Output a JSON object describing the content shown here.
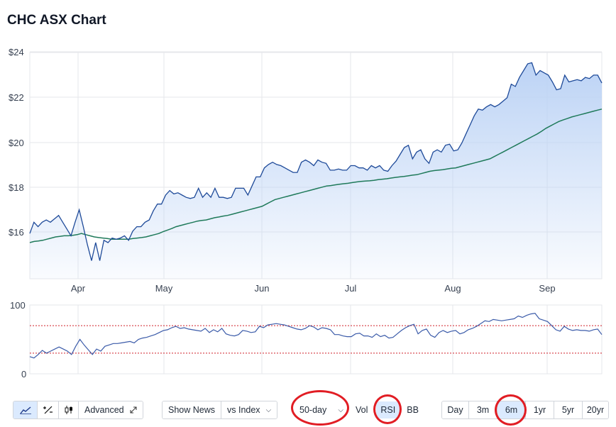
{
  "title": "CHC ASX Chart",
  "colors": {
    "price_line": "#1e4a99",
    "ma_line": "#1f7a5a",
    "area_top": "#bcd3f5",
    "rsi_line": "#3b5ba9",
    "rsi_bands": "#d0202a",
    "grid": "#e5e7eb",
    "annotation": "#e11d24",
    "active_button": "#dbeafe"
  },
  "chart_data": [
    {
      "type": "area",
      "title": "",
      "x_ticks": [
        "Apr",
        "May",
        "Jun",
        "Jul",
        "Aug",
        "Sep"
      ],
      "y_ticks": [
        "$16",
        "$18",
        "$20",
        "$22",
        "$24"
      ],
      "ylim": [
        14.3,
        24.3
      ],
      "grid": true,
      "series": [
        {
          "values": [
            16.3,
            16.8,
            16.6,
            16.8,
            16.9,
            16.8,
            16.95,
            17.1,
            16.8,
            16.5,
            16.2,
            16.8,
            17.35,
            16.6,
            15.8,
            15.1,
            15.9,
            15.1,
            16.0,
            15.9,
            16.1,
            16.05,
            16.1,
            16.2,
            16.0,
            16.4,
            16.6,
            16.6,
            16.8,
            16.9,
            17.3,
            17.6,
            17.6,
            18.0,
            18.2,
            18.05,
            18.1,
            18.0,
            17.9,
            17.85,
            17.9,
            18.3,
            17.9,
            18.1,
            17.9,
            18.3,
            17.9,
            17.9,
            17.85,
            17.9,
            18.3,
            18.3,
            18.3,
            18.0,
            18.4,
            18.8,
            18.8,
            19.2,
            19.35,
            19.45,
            19.35,
            19.3,
            19.2,
            19.1,
            19.0,
            19.0,
            19.45,
            19.55,
            19.45,
            19.3,
            19.55,
            19.45,
            19.4,
            19.1,
            19.1,
            19.15,
            19.1,
            19.1,
            19.3,
            19.3,
            19.2,
            19.2,
            19.1,
            19.3,
            19.2,
            19.3,
            19.1,
            19.05,
            19.3,
            19.5,
            19.8,
            20.1,
            20.2,
            19.6,
            19.9,
            20.0,
            19.6,
            19.4,
            19.9,
            20.0,
            19.9,
            20.2,
            20.25,
            19.95,
            20.0,
            20.3,
            20.7,
            21.1,
            21.5,
            21.8,
            21.75,
            21.9,
            22.0,
            21.9,
            22.0,
            22.15,
            22.3,
            22.9,
            22.8,
            23.2,
            23.5,
            23.8,
            23.85,
            23.3,
            23.5,
            23.4,
            23.3,
            23.0,
            22.65,
            22.7,
            23.3,
            23.0,
            23.05,
            23.1,
            23.05,
            23.2,
            23.15,
            23.3,
            23.3,
            22.95
          ]
        },
        {
          "values": [
            15.9,
            15.95,
            15.97,
            16.0,
            16.05,
            16.1,
            16.15,
            16.17,
            16.2,
            16.2,
            16.22,
            16.25,
            16.3,
            16.25,
            16.2,
            16.15,
            16.12,
            16.1,
            16.08,
            16.05,
            16.05,
            16.05,
            16.05,
            16.05,
            16.08,
            16.1,
            16.12,
            16.15,
            16.2,
            16.25,
            16.3,
            16.38,
            16.45,
            16.52,
            16.6,
            16.65,
            16.7,
            16.75,
            16.8,
            16.85,
            16.88,
            16.9,
            16.95,
            17.0,
            17.03,
            17.07,
            17.1,
            17.15,
            17.2,
            17.25,
            17.3,
            17.35,
            17.4,
            17.45,
            17.5,
            17.6,
            17.7,
            17.8,
            17.85,
            17.9,
            17.95,
            18.0,
            18.05,
            18.1,
            18.15,
            18.2,
            18.25,
            18.3,
            18.35,
            18.4,
            18.42,
            18.45,
            18.48,
            18.5,
            18.52,
            18.55,
            18.58,
            18.6,
            18.62,
            18.63,
            18.65,
            18.68,
            18.7,
            18.72,
            18.75,
            18.78,
            18.8,
            18.82,
            18.85,
            18.88,
            18.9,
            18.95,
            19.0,
            19.05,
            19.08,
            19.1,
            19.12,
            19.15,
            19.18,
            19.2,
            19.25,
            19.3,
            19.35,
            19.4,
            19.45,
            19.5,
            19.55,
            19.6,
            19.7,
            19.8,
            19.9,
            20.0,
            20.1,
            20.2,
            20.3,
            20.4,
            20.5,
            20.6,
            20.7,
            20.82,
            20.95,
            21.05,
            21.15,
            21.25,
            21.32,
            21.38,
            21.45,
            21.5,
            21.55,
            21.6,
            21.65,
            21.7,
            21.75,
            21.8
          ]
        }
      ]
    },
    {
      "type": "line",
      "title": "",
      "y_ticks": [
        "0",
        "100"
      ],
      "ylim": [
        0,
        100
      ],
      "bands": [
        70,
        30
      ],
      "grid": true,
      "series": [
        {
          "values": [
            25,
            23,
            28,
            34,
            30,
            33,
            36,
            39,
            36,
            33,
            28,
            40,
            50,
            42,
            35,
            28,
            36,
            33,
            40,
            42,
            44,
            44,
            45,
            46,
            47,
            45,
            50,
            52,
            53,
            55,
            57,
            60,
            63,
            64,
            67,
            69,
            66,
            67,
            65,
            64,
            63,
            62,
            66,
            60,
            64,
            61,
            66,
            58,
            56,
            55,
            57,
            63,
            62,
            60,
            61,
            69,
            67,
            71,
            72,
            73,
            72,
            71,
            69,
            67,
            65,
            64,
            66,
            70,
            68,
            64,
            67,
            66,
            64,
            57,
            57,
            55,
            54,
            54,
            58,
            59,
            55,
            55,
            53,
            58,
            54,
            56,
            52,
            53,
            58,
            63,
            67,
            70,
            72,
            58,
            63,
            65,
            56,
            53,
            60,
            63,
            60,
            62,
            63,
            58,
            60,
            64,
            66,
            69,
            73,
            77,
            76,
            79,
            78,
            77,
            78,
            79,
            80,
            84,
            82,
            85,
            87,
            88,
            80,
            78,
            76,
            70,
            64,
            62,
            69,
            65,
            63,
            64,
            63,
            63,
            62,
            64,
            65,
            57
          ]
        }
      ]
    }
  ],
  "toolbar": {
    "chart_type_buttons": [
      {
        "icon": "line-chart-icon",
        "active": true
      },
      {
        "icon": "percent-icon",
        "active": false
      },
      {
        "icon": "candlestick-icon",
        "active": false
      }
    ],
    "advanced_label": "Advanced",
    "expand_icon": "expand-icon",
    "show_news_label": "Show News",
    "vs_index_label": "vs Index",
    "ma_select_label": "50-day",
    "indicators": [
      {
        "label": "Vol",
        "active": false
      },
      {
        "label": "RSI",
        "active": true
      },
      {
        "label": "BB",
        "active": false
      }
    ],
    "ranges": [
      {
        "label": "Day",
        "active": false
      },
      {
        "label": "3m",
        "active": false
      },
      {
        "label": "6m",
        "active": true
      },
      {
        "label": "1yr",
        "active": false
      },
      {
        "label": "5yr",
        "active": false
      },
      {
        "label": "20yr",
        "active": false
      }
    ]
  }
}
